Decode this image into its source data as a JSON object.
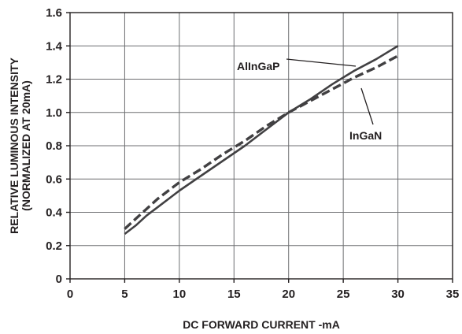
{
  "chart_data": {
    "type": "line",
    "xlabel": "DC FORWARD CURRENT -mA",
    "ylabel_lines": [
      "RELATIVE LUMINOUS INTENSITY",
      "(NORMALIZED AT 20mA)"
    ],
    "xlim": [
      0,
      35
    ],
    "ylim": [
      0,
      1.6
    ],
    "xticks": [
      "0",
      "5",
      "10",
      "15",
      "20",
      "25",
      "30",
      "35"
    ],
    "yticks": [
      "0",
      "0.2",
      "0.4",
      "0.6",
      "0.8",
      "1.0",
      "1.2",
      "1.4",
      "1.6"
    ],
    "grid": true,
    "series": [
      {
        "name": "AlInGaP",
        "style": "solid",
        "color": "#414042",
        "x": [
          5,
          6,
          7,
          8,
          9,
          10,
          12,
          14,
          16,
          18,
          20,
          22,
          24,
          26,
          28,
          30
        ],
        "y": [
          0.27,
          0.32,
          0.38,
          0.43,
          0.48,
          0.53,
          0.62,
          0.71,
          0.8,
          0.9,
          1.0,
          1.08,
          1.17,
          1.25,
          1.32,
          1.4
        ]
      },
      {
        "name": "InGaN",
        "style": "dashed",
        "color": "#414042",
        "x": [
          5,
          6,
          7,
          8,
          9,
          10,
          12,
          14,
          16,
          18,
          20,
          22,
          24,
          26,
          28,
          30
        ],
        "y": [
          0.3,
          0.36,
          0.42,
          0.48,
          0.53,
          0.58,
          0.66,
          0.75,
          0.83,
          0.92,
          1.0,
          1.07,
          1.14,
          1.21,
          1.27,
          1.34
        ]
      }
    ]
  }
}
